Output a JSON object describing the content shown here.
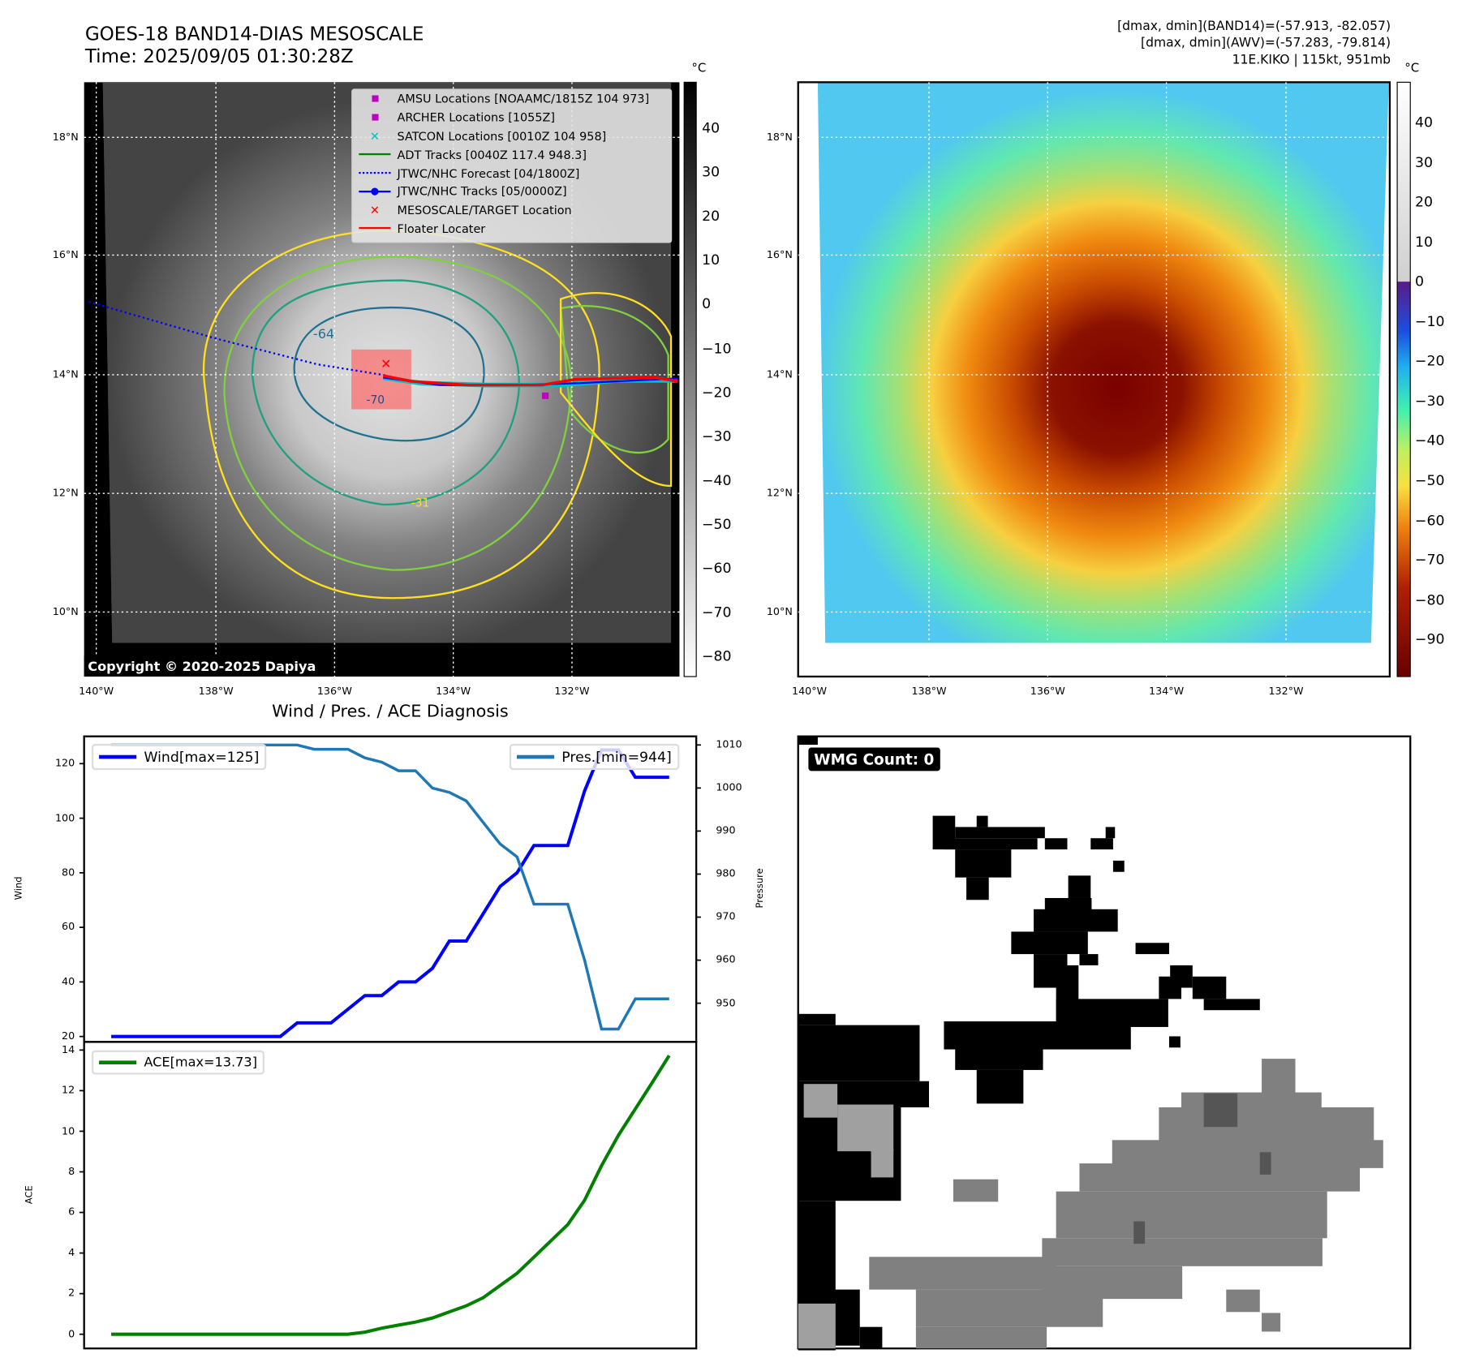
{
  "header": {
    "title_line1": "GOES-18 BAND14-DIAS MESOSCALE",
    "title_line2": "Time: 2025/09/05 01:30:28Z",
    "info_line1": "[dmax, dmin](BAND14)=(-57.913, -82.057)",
    "info_line2": "[dmax, dmin](AWV)=(-57.283, -79.814)",
    "info_line3": "11E.KIKO | 115kt, 951mb"
  },
  "maps": {
    "unit": "°C",
    "lon_labels": [
      "140°W",
      "138°W",
      "136°W",
      "134°W",
      "132°W"
    ],
    "lat_labels": [
      "18°N",
      "16°N",
      "14°N",
      "12°N",
      "10°N"
    ],
    "cb1_ticks": [
      "40",
      "30",
      "20",
      "10",
      "0",
      "−10",
      "−20",
      "−30",
      "−40",
      "−50",
      "−60",
      "−70",
      "−80"
    ],
    "cb2_ticks": [
      "40",
      "30",
      "20",
      "10",
      "0",
      "−10",
      "−20",
      "−30",
      "−40",
      "−50",
      "−60",
      "−70",
      "−80",
      "−90"
    ],
    "copyright": "Copyright © 2020-2025 Dapiya",
    "contour_labels": [
      "-64",
      "-70",
      "-31"
    ],
    "legend": [
      {
        "label": "AMSU Locations [NOAAMC/1815Z 104 973]",
        "color": "#c000c0",
        "marker": "square"
      },
      {
        "label": "ARCHER Locations [1055Z]",
        "color": "#c000c0",
        "marker": "square"
      },
      {
        "label": "SATCON Locations [0010Z 104 958]",
        "color": "#00c0c0",
        "marker": "x"
      },
      {
        "label": "ADT Tracks [0040Z 117.4 948.3]",
        "color": "#008000",
        "marker": "line"
      },
      {
        "label": "JTWC/NHC Forecast [04/1800Z]",
        "color": "#0000ff",
        "marker": "dotted"
      },
      {
        "label": "JTWC/NHC Tracks [05/0000Z]",
        "color": "#0000ff",
        "marker": "line-dot"
      },
      {
        "label": "MESOSCALE/TARGET Location",
        "color": "#ff0000",
        "marker": "x"
      },
      {
        "label": "Floater Locater",
        "color": "#ff0000",
        "marker": "line"
      }
    ]
  },
  "chart_data": [
    {
      "type": "line",
      "title": "Wind / Pres. / ACE Diagnosis",
      "ylabel": "Wind",
      "ylabel_right": "Pressure",
      "ylim": [
        18,
        130
      ],
      "ylim_right": [
        941,
        1012
      ],
      "yticks": [
        "120",
        "100",
        "80",
        "60",
        "40",
        "20"
      ],
      "yticks_right": [
        "1010",
        "1000",
        "990",
        "980",
        "970",
        "960",
        "950"
      ],
      "series": [
        {
          "name": "Wind[max=125]",
          "color": "#0000ff",
          "axis": "left",
          "values": [
            20,
            20,
            20,
            20,
            20,
            20,
            20,
            20,
            20,
            20,
            20,
            25,
            25,
            25,
            30,
            35,
            35,
            40,
            40,
            45,
            55,
            55,
            65,
            75,
            80,
            90,
            90,
            90,
            110,
            125,
            125,
            115,
            115,
            115
          ]
        },
        {
          "name": "Pres.[min=944]",
          "color": "#1f77b4",
          "axis": "right",
          "values": [
            1010,
            1010,
            1010,
            1010,
            1010,
            1010,
            1010,
            1010,
            1010,
            1010,
            1010,
            1010,
            1009,
            1009,
            1009,
            1007,
            1006,
            1004,
            1004,
            1000,
            999,
            997,
            992,
            987,
            984,
            973,
            973,
            973,
            960,
            944,
            944,
            951,
            951,
            951
          ]
        }
      ]
    },
    {
      "type": "line",
      "ylabel": "ACE",
      "ylim": [
        -0.7,
        14.4
      ],
      "yticks": [
        "14",
        "12",
        "10",
        "8",
        "6",
        "4",
        "2",
        "0"
      ],
      "series": [
        {
          "name": "ACE[max=13.73]",
          "color": "#008000",
          "values": [
            0,
            0,
            0,
            0,
            0,
            0,
            0,
            0,
            0,
            0,
            0,
            0,
            0,
            0,
            0,
            0.1,
            0.3,
            0.45,
            0.6,
            0.8,
            1.1,
            1.4,
            1.8,
            2.4,
            3.0,
            3.8,
            4.6,
            5.4,
            6.6,
            8.3,
            9.8,
            11.1,
            12.4,
            13.73
          ]
        }
      ]
    }
  ],
  "wmg": {
    "label": "WMG Count: 0"
  }
}
